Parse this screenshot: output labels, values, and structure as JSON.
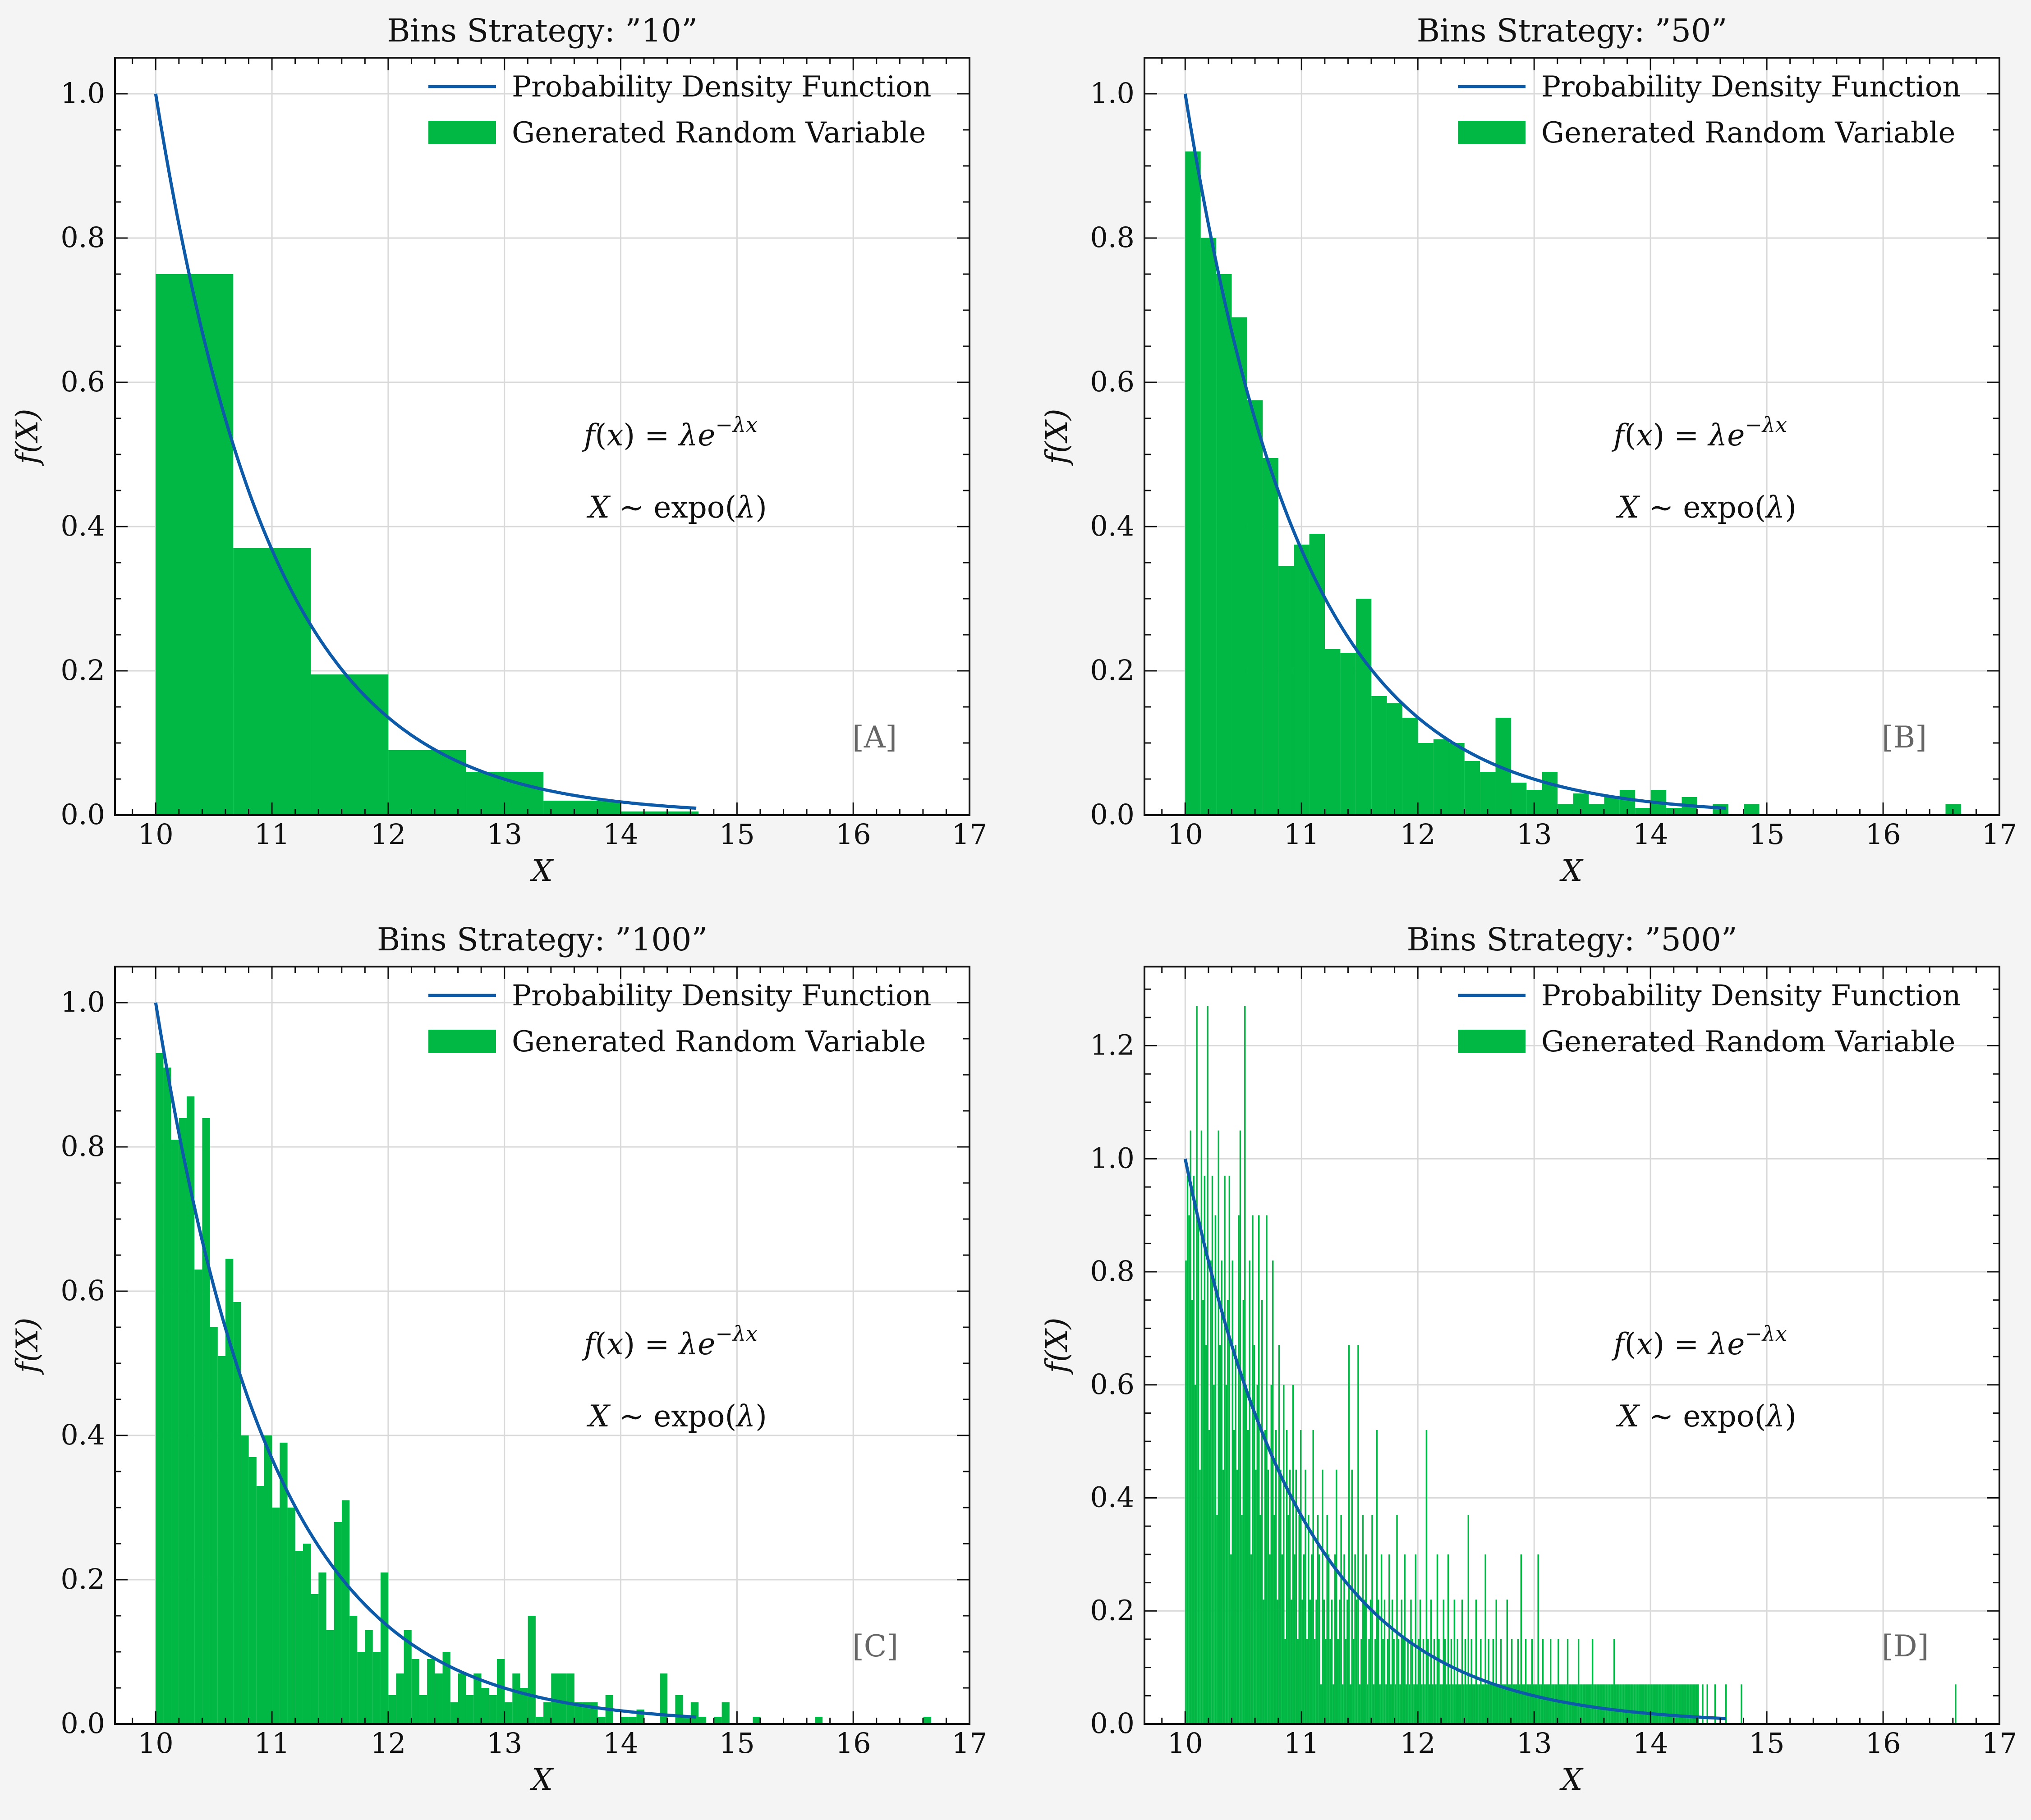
{
  "colors": {
    "background": "#f4f4f4",
    "pdf_line": "#0d5ba8",
    "histogram": "#00b843",
    "grid": "#d9d9d9",
    "panel_label": "#666666"
  },
  "chart_data": [
    {
      "type": "bar",
      "title": "Bins Strategy: ”10”",
      "panel_label": "[A]",
      "xlabel": "X",
      "ylabel": "f(X)",
      "xlim": [
        9.65,
        17.0
      ],
      "ylim": [
        0,
        1.05
      ],
      "xticks": [
        "10",
        "11",
        "12",
        "13",
        "14",
        "15",
        "16",
        "17"
      ],
      "yticks": [
        "0.0",
        "0.2",
        "0.4",
        "0.6",
        "0.8",
        "1.0"
      ],
      "legend": [
        "Probability Density Function",
        "Generated Random Variable"
      ],
      "legend_position": "top-right",
      "annotations": [
        "f(x) = λe^{−λx}",
        "X ∼ expo(λ)"
      ],
      "bins": {
        "start": 10.0,
        "width": 0.667,
        "heights": [
          0.75,
          0.37,
          0.195,
          0.09,
          0.06,
          0.02,
          0.005,
          0.0,
          0.0,
          0.0
        ]
      },
      "series": [
        {
          "name": "Probability Density Function",
          "type": "line",
          "x_range": [
            10.0,
            14.65
          ],
          "rate": 1.0
        },
        {
          "name": "Generated Random Variable",
          "type": "histogram"
        }
      ]
    },
    {
      "type": "bar",
      "title": "Bins Strategy: ”50”",
      "panel_label": "[B]",
      "xlabel": "X",
      "ylabel": "f(X)",
      "xlim": [
        9.65,
        17.0
      ],
      "ylim": [
        0,
        1.05
      ],
      "xticks": [
        "10",
        "11",
        "12",
        "13",
        "14",
        "15",
        "16",
        "17"
      ],
      "yticks": [
        "0.0",
        "0.2",
        "0.4",
        "0.6",
        "0.8",
        "1.0"
      ],
      "legend": [
        "Probability Density Function",
        "Generated Random Variable"
      ],
      "legend_position": "top-right",
      "annotations": [
        "f(x) = λe^{−λx}",
        "X ∼ expo(λ)"
      ],
      "bins": {
        "start": 10.0,
        "width": 0.1334,
        "heights": [
          0.92,
          0.8,
          0.75,
          0.69,
          0.575,
          0.495,
          0.345,
          0.375,
          0.39,
          0.23,
          0.225,
          0.3,
          0.165,
          0.155,
          0.135,
          0.1,
          0.105,
          0.1,
          0.075,
          0.06,
          0.135,
          0.045,
          0.035,
          0.06,
          0.015,
          0.03,
          0.015,
          0.025,
          0.035,
          0.01,
          0.035,
          0.01,
          0.025,
          0.0,
          0.015,
          0.0,
          0.015,
          0.0,
          0.0,
          0.0,
          0.0,
          0.0,
          0.0,
          0.0,
          0.0,
          0.0,
          0.0,
          0.0,
          0.0,
          0.015
        ]
      },
      "series": [
        {
          "name": "Probability Density Function",
          "type": "line",
          "x_range": [
            10.0,
            14.65
          ],
          "rate": 1.0
        },
        {
          "name": "Generated Random Variable",
          "type": "histogram"
        }
      ]
    },
    {
      "type": "bar",
      "title": "Bins Strategy: ”100”",
      "panel_label": "[C]",
      "xlabel": "X",
      "ylabel": "f(X)",
      "xlim": [
        9.65,
        17.0
      ],
      "ylim": [
        0,
        1.05
      ],
      "xticks": [
        "10",
        "11",
        "12",
        "13",
        "14",
        "15",
        "16",
        "17"
      ],
      "yticks": [
        "0.0",
        "0.2",
        "0.4",
        "0.6",
        "0.8",
        "1.0"
      ],
      "legend": [
        "Probability Density Function",
        "Generated Random Variable"
      ],
      "legend_position": "top-right",
      "annotations": [
        "f(x) = λe^{−λx}",
        "X ∼ expo(λ)"
      ],
      "bins": {
        "start": 10.0,
        "width": 0.0667,
        "heights": [
          0.93,
          0.91,
          0.81,
          0.84,
          0.87,
          0.63,
          0.84,
          0.55,
          0.51,
          0.645,
          0.585,
          0.4,
          0.37,
          0.33,
          0.4,
          0.3,
          0.39,
          0.3,
          0.24,
          0.25,
          0.18,
          0.21,
          0.13,
          0.28,
          0.31,
          0.15,
          0.1,
          0.13,
          0.1,
          0.21,
          0.04,
          0.07,
          0.13,
          0.09,
          0.04,
          0.09,
          0.07,
          0.1,
          0.03,
          0.07,
          0.04,
          0.07,
          0.05,
          0.04,
          0.09,
          0.03,
          0.07,
          0.05,
          0.15,
          0.01,
          0.03,
          0.07,
          0.07,
          0.07,
          0.03,
          0.03,
          0.03,
          0.01,
          0.04,
          0.0,
          0.01,
          0.01,
          0.02,
          0.0,
          0.0,
          0.07,
          0.0,
          0.04,
          0.01,
          0.03,
          0.01,
          0.0,
          0.01,
          0.03,
          0.0,
          0.0,
          0.0,
          0.01,
          0.0,
          0.0,
          0.0,
          0.0,
          0.0,
          0.0,
          0.0,
          0.01,
          0.0,
          0.0,
          0.0,
          0.0,
          0.0,
          0.0,
          0.0,
          0.0,
          0.0,
          0.0,
          0.0,
          0.0,
          0.0,
          0.01
        ]
      },
      "series": [
        {
          "name": "Probability Density Function",
          "type": "line",
          "x_range": [
            10.0,
            14.65
          ],
          "rate": 1.0
        },
        {
          "name": "Generated Random Variable",
          "type": "histogram"
        }
      ]
    },
    {
      "type": "bar",
      "title": "Bins Strategy: ”500”",
      "panel_label": "[D]",
      "xlabel": "X",
      "ylabel": "f(X)",
      "xlim": [
        9.65,
        17.0
      ],
      "ylim": [
        0,
        1.34
      ],
      "xticks": [
        "10",
        "11",
        "12",
        "13",
        "14",
        "15",
        "16",
        "17"
      ],
      "yticks": [
        "0.0",
        "0.2",
        "0.4",
        "0.6",
        "0.8",
        "1.0",
        "1.2"
      ],
      "legend": [
        "Probability Density Function",
        "Generated Random Variable"
      ],
      "legend_position": "top-right",
      "annotations": [
        "f(x) = λe^{−λx}",
        "X ∼ expo(λ)"
      ],
      "bins": {
        "start": 10.0,
        "width": 0.01334,
        "heights": [
          0.82,
          0.97,
          0.9,
          1.05,
          0.75,
          0.97,
          0.6,
          1.27,
          0.9,
          0.45,
          1.05,
          0.75,
          0.97,
          0.67,
          1.27,
          0.52,
          0.82,
          0.97,
          0.6,
          0.9,
          0.37,
          1.05,
          0.67,
          0.82,
          0.45,
          0.97,
          0.6,
          0.75,
          0.97,
          0.3,
          0.82,
          0.52,
          0.67,
          0.45,
          0.9,
          1.05,
          0.37,
          0.75,
          1.27,
          0.6,
          0.52,
          0.82,
          0.3,
          0.9,
          0.67,
          0.45,
          0.6,
          0.9,
          0.37,
          0.75,
          0.22,
          0.52,
          0.9,
          0.45,
          0.3,
          0.6,
          0.82,
          0.37,
          0.52,
          0.22,
          0.67,
          0.45,
          0.3,
          0.6,
          0.15,
          0.52,
          0.37,
          0.45,
          0.22,
          0.6,
          0.3,
          0.45,
          0.15,
          0.37,
          0.52,
          0.22,
          0.3,
          0.45,
          0.15,
          0.37,
          0.22,
          0.3,
          0.52,
          0.15,
          0.22,
          0.37,
          0.3,
          0.07,
          0.45,
          0.22,
          0.15,
          0.37,
          0.3,
          0.15,
          0.22,
          0.07,
          0.3,
          0.45,
          0.15,
          0.22,
          0.37,
          0.07,
          0.3,
          0.15,
          0.22,
          0.67,
          0.07,
          0.45,
          0.15,
          0.3,
          0.22,
          0.67,
          0.07,
          0.15,
          0.37,
          0.22,
          0.3,
          0.07,
          0.15,
          0.22,
          0.37,
          0.07,
          0.15,
          0.52,
          0.22,
          0.07,
          0.3,
          0.15,
          0.22,
          0.07,
          0.15,
          0.3,
          0.07,
          0.22,
          0.15,
          0.07,
          0.37,
          0.15,
          0.07,
          0.22,
          0.15,
          0.3,
          0.07,
          0.15,
          0.07,
          0.22,
          0.15,
          0.07,
          0.3,
          0.07,
          0.15,
          0.22,
          0.07,
          0.15,
          0.07,
          0.52,
          0.15,
          0.07,
          0.22,
          0.07,
          0.15,
          0.07,
          0.3,
          0.15,
          0.07,
          0.07,
          0.22,
          0.15,
          0.07,
          0.3,
          0.07,
          0.15,
          0.07,
          0.22,
          0.07,
          0.15,
          0.07,
          0.07,
          0.22,
          0.07,
          0.15,
          0.07,
          0.37,
          0.07,
          0.15,
          0.07,
          0.07,
          0.22,
          0.07,
          0.07,
          0.15,
          0.07,
          0.07,
          0.3,
          0.07,
          0.15,
          0.07,
          0.07,
          0.15,
          0.07,
          0.22,
          0.07,
          0.07,
          0.15,
          0.07,
          0.07,
          0.07,
          0.22,
          0.07,
          0.07,
          0.15,
          0.07,
          0.07,
          0.07,
          0.15,
          0.07,
          0.3,
          0.07,
          0.07,
          0.15,
          0.07,
          0.07,
          0.07,
          0.15,
          0.07,
          0.07,
          0.07,
          0.3,
          0.07,
          0.07,
          0.15,
          0.07,
          0.07,
          0.07,
          0.07,
          0.15,
          0.07,
          0.07,
          0.07,
          0.07,
          0.15,
          0.07,
          0.07,
          0.07,
          0.07,
          0.07,
          0.15,
          0.07,
          0.07,
          0.07,
          0.07,
          0.07,
          0.07,
          0.15,
          0.07,
          0.07,
          0.07,
          0.07,
          0.07,
          0.07,
          0.07,
          0.07,
          0.15,
          0.07,
          0.07,
          0.07,
          0.07,
          0.07,
          0.07,
          0.07,
          0.07,
          0.07,
          0.07,
          0.07,
          0.07,
          0.07,
          0.15,
          0.07,
          0.07,
          0.07,
          0.07,
          0.07,
          0.07,
          0.07,
          0.07,
          0.07,
          0.07,
          0.07,
          0.07,
          0.07,
          0.07,
          0.07,
          0.07,
          0.07,
          0.07,
          0.07,
          0.07,
          0.07,
          0.07,
          0.07,
          0.07,
          0.07,
          0.07,
          0.07,
          0.07,
          0.07,
          0.07,
          0.07,
          0.07,
          0.07,
          0.07,
          0.07,
          0.07,
          0.07,
          0.07,
          0.07,
          0.07,
          0.07,
          0.07,
          0.07,
          0.07,
          0.07,
          0.07,
          0.07,
          0.07,
          0.07,
          0.07,
          0.07,
          0.07,
          0.07,
          0.07,
          0.0,
          0.0,
          0.07,
          0.0,
          0.0,
          0.07,
          0.0,
          0.0,
          0.0,
          0.0,
          0.07,
          0.0,
          0.0,
          0.0,
          0.0,
          0.0,
          0.0,
          0.07,
          0.0,
          0.0,
          0.0,
          0.0,
          0.0,
          0.0,
          0.0,
          0.0,
          0.0,
          0.07,
          0.0,
          0.0,
          0.0,
          0.0,
          0.0,
          0.0,
          0.0,
          0.0,
          0.0,
          0.0,
          0.0,
          0.0,
          0.0,
          0.0,
          0.0,
          0.0,
          0.0,
          0.0,
          0.0,
          0.0,
          0.0,
          0.0,
          0.0,
          0.0,
          0.0,
          0.0,
          0.0,
          0.0,
          0.0,
          0.0,
          0.0,
          0.0,
          0.0,
          0.0,
          0.0,
          0.0,
          0.0,
          0.0,
          0.0,
          0.0,
          0.0,
          0.0,
          0.0,
          0.0,
          0.0,
          0.0,
          0.0,
          0.0,
          0.0,
          0.0,
          0.0,
          0.0,
          0.0,
          0.0,
          0.0,
          0.0,
          0.0,
          0.0,
          0.0,
          0.0,
          0.0,
          0.0,
          0.0,
          0.0,
          0.0,
          0.0,
          0.0,
          0.0,
          0.0,
          0.0,
          0.0,
          0.0,
          0.0,
          0.0,
          0.0,
          0.0,
          0.0,
          0.0,
          0.0,
          0.0,
          0.0,
          0.0,
          0.0,
          0.0,
          0.0,
          0.0,
          0.0,
          0.0,
          0.0,
          0.0,
          0.0,
          0.0,
          0.0,
          0.0,
          0.0,
          0.0,
          0.0,
          0.0,
          0.0,
          0.0,
          0.0,
          0.0,
          0.0,
          0.0,
          0.0,
          0.0,
          0.0,
          0.0,
          0.0,
          0.0,
          0.0,
          0.0,
          0.0,
          0.0,
          0.0,
          0.0,
          0.0,
          0.0,
          0.0,
          0.0,
          0.0,
          0.0,
          0.0,
          0.0,
          0.0,
          0.0,
          0.0,
          0.0,
          0.0,
          0.0,
          0.0,
          0.0,
          0.0,
          0.0,
          0.0,
          0.0,
          0.0,
          0.07
        ]
      },
      "series": [
        {
          "name": "Probability Density Function",
          "type": "line",
          "x_range": [
            10.0,
            14.65
          ],
          "rate": 1.0
        },
        {
          "name": "Generated Random Variable",
          "type": "histogram"
        }
      ]
    }
  ]
}
